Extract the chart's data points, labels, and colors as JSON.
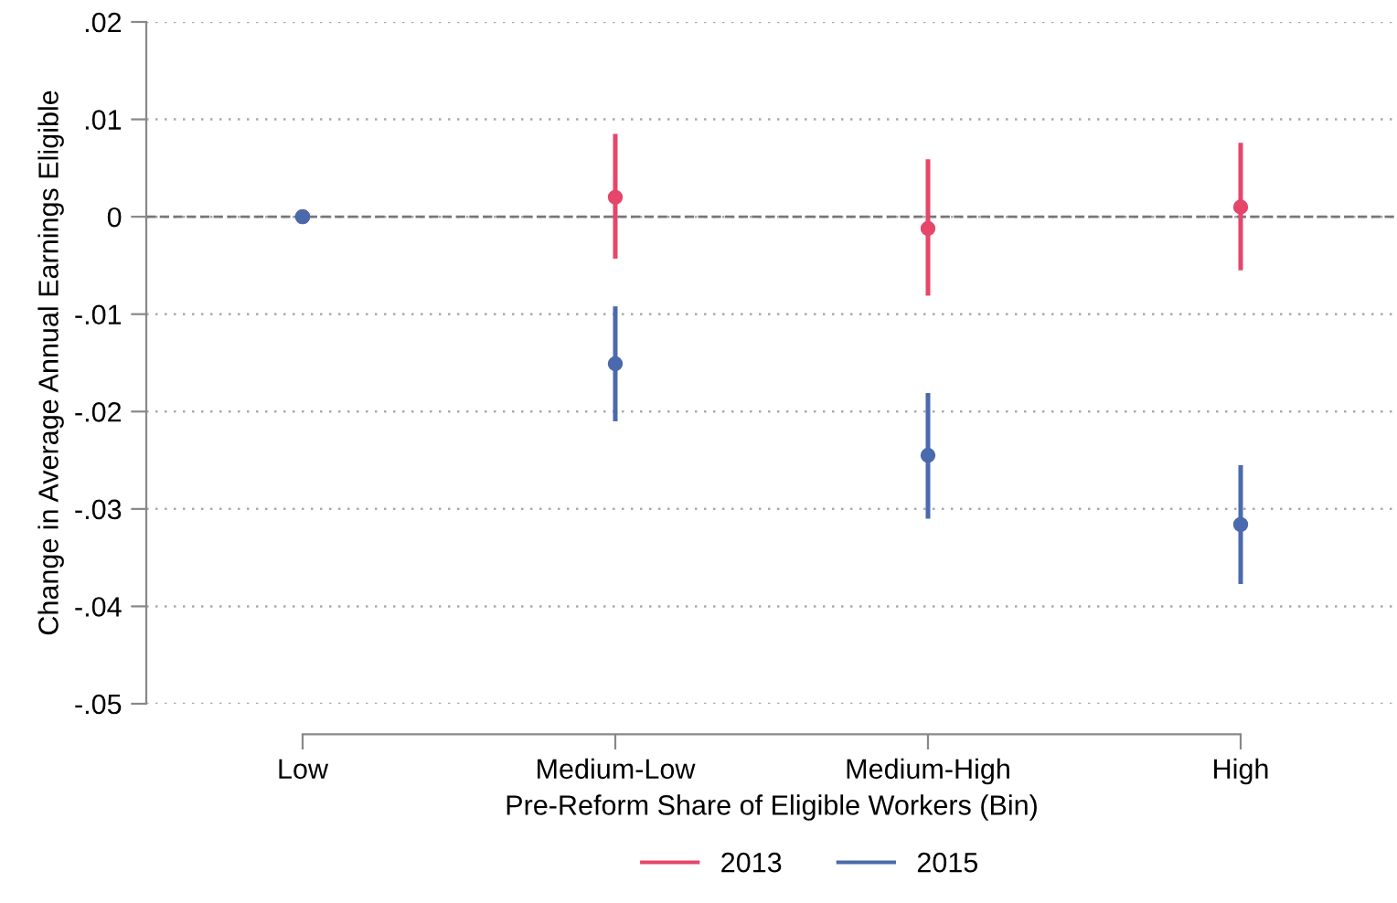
{
  "chart_data": {
    "type": "scatter",
    "xlabel": "Pre-Reform Share of Eligible Workers (Bin)",
    "ylabel": "Change in Average Annual Earnings Eligible",
    "categories": [
      "Low",
      "Medium-Low",
      "Medium-High",
      "High"
    ],
    "series": [
      {
        "name": "2013",
        "color": "#e5466a",
        "values": [
          0,
          0.002,
          -0.0012,
          0.001
        ],
        "errors": [
          null,
          [
            -0.0043,
            0.0085
          ],
          [
            -0.0081,
            0.0059
          ],
          [
            -0.0055,
            0.0076
          ]
        ]
      },
      {
        "name": "2015",
        "color": "#4a6aad",
        "values": [
          0,
          -0.0151,
          -0.0245,
          -0.0316
        ],
        "errors": [
          null,
          [
            -0.021,
            -0.0092
          ],
          [
            -0.031,
            -0.0181
          ],
          [
            -0.0377,
            -0.0255
          ]
        ]
      }
    ],
    "ylim": [
      -0.05,
      0.02
    ],
    "yticks": [
      {
        "value": -0.05,
        "label": "-.05"
      },
      {
        "value": -0.04,
        "label": "-.04"
      },
      {
        "value": -0.03,
        "label": "-.03"
      },
      {
        "value": -0.02,
        "label": "-.02"
      },
      {
        "value": -0.01,
        "label": "-.01"
      },
      0,
      {
        "value": 0.01,
        "label": ".01"
      },
      {
        "value": 0.02,
        "label": ".02"
      }
    ],
    "ref_lines": [
      {
        "axis": "y",
        "value": 0,
        "color": "#777777",
        "line_style": "dashed"
      }
    ],
    "grid": "y",
    "legend": "bottom",
    "marker": "circle"
  }
}
